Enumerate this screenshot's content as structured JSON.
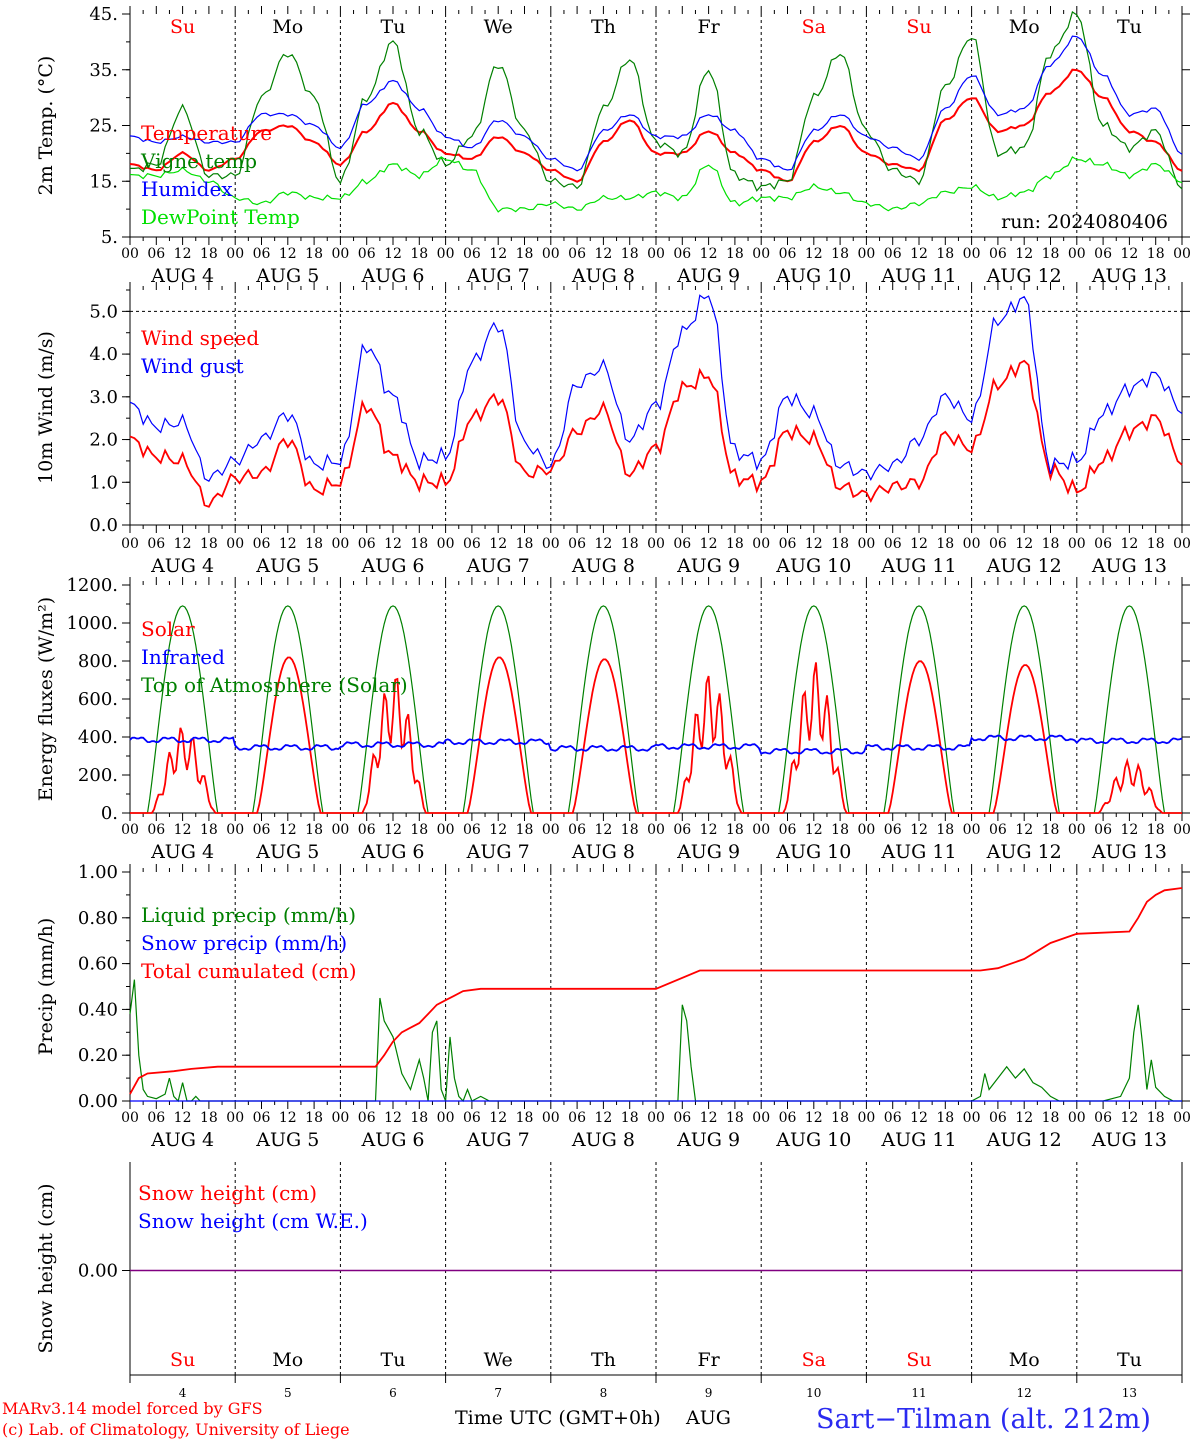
{
  "run_label": "run: 2024080406",
  "days": [
    "Su",
    "Mo",
    "Tu",
    "We",
    "Th",
    "Fr",
    "Sa",
    "Su",
    "Mo",
    "Tu"
  ],
  "weekend_flags": [
    true,
    false,
    false,
    false,
    false,
    false,
    true,
    true,
    false,
    false
  ],
  "date_labels": [
    "AUG  4",
    "AUG  5",
    "AUG  6",
    "AUG  7",
    "AUG  8",
    "AUG  9",
    "AUG 10",
    "AUG 11",
    "AUG 12",
    "AUG 13"
  ],
  "hour_labels": [
    "00",
    "06",
    "12",
    "18"
  ],
  "last_hour_label": "00",
  "bottom_day_numbers": [
    "4",
    "5",
    "6",
    "7",
    "8",
    "9",
    "10",
    "11",
    "12",
    "13"
  ],
  "footer": {
    "model_line": "MARv3.14 model forced by GFS",
    "lab_line": "(c) Lab. of Climatology, University of Liege",
    "axis_title": "Time UTC (GMT+0h)",
    "month": "AUG",
    "station": "Sart−Tilman (alt. 212m)"
  },
  "colors": {
    "red": "#ff0000",
    "green": "#008000",
    "blue": "#0000ff",
    "lime": "#00e000",
    "purple": "#800080",
    "axis": "#000000"
  },
  "chart_data": [
    {
      "type": "line",
      "ylabel": "2m Temp. (°C)",
      "ylim": [
        5,
        45
      ],
      "yticks": [
        5,
        15,
        25,
        35,
        45
      ],
      "ytick_labels": [
        "5.",
        "15.",
        "25.",
        "35.",
        "45."
      ],
      "x_unit": "hours since 2024-08-04 00 UTC",
      "series": [
        {
          "name": "Temperature",
          "color": "red",
          "x": [
            0,
            6,
            12,
            18,
            24,
            30,
            36,
            42,
            48,
            54,
            60,
            66,
            72,
            78,
            84,
            90,
            96,
            102,
            108,
            114,
            120,
            126,
            132,
            138,
            144,
            150,
            156,
            162,
            168,
            174,
            180,
            186,
            192,
            198,
            204,
            210,
            216,
            222,
            228,
            234,
            240
          ],
          "y": [
            18,
            17,
            20,
            17,
            19,
            24,
            25,
            22,
            18,
            24,
            29,
            24,
            20,
            19,
            23,
            20,
            17,
            15,
            22,
            26,
            20,
            20,
            24,
            20,
            17,
            15,
            22,
            25,
            20,
            18,
            17,
            26,
            30,
            24,
            25,
            31,
            35,
            30,
            24,
            22,
            17
          ]
        },
        {
          "name": "Vigne temp",
          "color": "green",
          "x": [
            0,
            6,
            12,
            18,
            24,
            30,
            36,
            42,
            48,
            54,
            60,
            66,
            72,
            78,
            84,
            90,
            96,
            102,
            108,
            114,
            120,
            126,
            132,
            138,
            144,
            150,
            156,
            162,
            168,
            174,
            180,
            186,
            192,
            198,
            204,
            210,
            216,
            222,
            228,
            234,
            240
          ],
          "y": [
            17,
            18,
            28,
            16,
            16,
            30,
            38,
            30,
            15,
            30,
            40,
            24,
            18,
            23,
            36,
            24,
            15,
            14,
            28,
            37,
            22,
            20,
            35,
            16,
            14,
            15,
            30,
            38,
            24,
            17,
            15,
            32,
            41,
            20,
            21,
            38,
            45,
            25,
            21,
            24,
            14
          ]
        },
        {
          "name": "Humidex",
          "color": "blue",
          "x": [
            0,
            6,
            12,
            18,
            24,
            30,
            36,
            42,
            48,
            54,
            60,
            66,
            72,
            78,
            84,
            90,
            96,
            102,
            108,
            114,
            120,
            126,
            132,
            138,
            144,
            150,
            156,
            162,
            168,
            174,
            180,
            186,
            192,
            198,
            204,
            210,
            216,
            222,
            228,
            234,
            240
          ],
          "y": [
            23,
            22,
            23,
            22,
            22,
            27,
            27,
            25,
            21,
            29,
            33,
            28,
            23,
            21,
            26,
            23,
            19,
            17,
            24,
            27,
            23,
            23,
            27,
            24,
            19,
            17,
            24,
            27,
            23,
            21,
            19,
            28,
            34,
            27,
            28,
            36,
            41,
            34,
            27,
            28,
            20
          ]
        },
        {
          "name": "DewPoint Temp",
          "color": "lime",
          "x": [
            0,
            6,
            12,
            18,
            24,
            30,
            36,
            42,
            48,
            54,
            60,
            66,
            72,
            78,
            84,
            90,
            96,
            102,
            108,
            114,
            120,
            126,
            132,
            138,
            144,
            150,
            156,
            162,
            168,
            174,
            180,
            186,
            192,
            198,
            204,
            210,
            216,
            222,
            228,
            234,
            240
          ],
          "y": [
            16,
            16,
            17,
            15,
            12,
            11,
            13,
            12,
            12,
            15,
            18,
            16,
            19,
            17,
            10,
            10,
            11,
            10,
            12,
            12,
            13,
            12,
            18,
            11,
            12,
            12,
            14,
            13,
            11,
            10,
            11,
            13,
            14,
            12,
            13,
            16,
            19,
            18,
            16,
            18,
            15
          ]
        }
      ],
      "legend": [
        "Temperature",
        "Vigne temp",
        "Humidex",
        "DewPoint Temp"
      ],
      "legend_placement": "left"
    },
    {
      "type": "line",
      "ylabel": "10m Wind (m/s)",
      "ylim": [
        0,
        5.5
      ],
      "yticks": [
        0,
        1,
        2,
        3,
        4,
        5
      ],
      "ytick_labels": [
        "0.0",
        "1.0",
        "2.0",
        "3.0",
        "4.0",
        "5.0"
      ],
      "ref_line": 5.0,
      "series": [
        {
          "name": "Wind speed",
          "color": "red",
          "x": [
            0,
            6,
            12,
            18,
            24,
            30,
            36,
            42,
            48,
            54,
            60,
            66,
            72,
            78,
            84,
            90,
            96,
            102,
            108,
            114,
            120,
            126,
            132,
            138,
            144,
            150,
            156,
            162,
            168,
            174,
            180,
            186,
            192,
            198,
            204,
            210,
            216,
            222,
            228,
            234,
            240
          ],
          "y": [
            2.0,
            1.6,
            1.5,
            0.5,
            1.1,
            1.2,
            2.0,
            0.8,
            1.0,
            2.8,
            1.6,
            1.0,
            1.0,
            2.5,
            3.0,
            1.2,
            1.3,
            2.2,
            2.7,
            1.2,
            1.8,
            3.2,
            3.5,
            1.1,
            1.0,
            2.2,
            2.0,
            0.9,
            0.7,
            0.9,
            1.0,
            2.1,
            1.8,
            3.3,
            3.8,
            1.3,
            0.8,
            1.5,
            2.2,
            2.5,
            1.5
          ]
        },
        {
          "name": "Wind gust",
          "color": "blue",
          "x": [
            0,
            6,
            12,
            18,
            24,
            30,
            36,
            42,
            48,
            54,
            60,
            66,
            72,
            78,
            84,
            90,
            96,
            102,
            108,
            114,
            120,
            126,
            132,
            138,
            144,
            150,
            156,
            162,
            168,
            174,
            180,
            186,
            192,
            198,
            204,
            210,
            216,
            222,
            228,
            234,
            240
          ],
          "y": [
            2.8,
            2.3,
            2.4,
            1.1,
            1.5,
            2.0,
            2.6,
            1.4,
            1.5,
            4.2,
            3.0,
            1.5,
            1.6,
            3.8,
            4.7,
            1.9,
            1.4,
            3.3,
            3.7,
            2.0,
            2.8,
            4.5,
            5.4,
            1.7,
            1.5,
            3.0,
            2.6,
            1.4,
            1.2,
            1.4,
            2.0,
            3.0,
            2.5,
            4.8,
            5.3,
            1.4,
            1.5,
            2.6,
            3.2,
            3.5,
            2.7
          ]
        }
      ],
      "legend": [
        "Wind speed",
        "Wind gust"
      ],
      "legend_placement": "left"
    },
    {
      "type": "line",
      "ylabel": "Energy fluxes (W/m²)",
      "ylim": [
        0,
        1200
      ],
      "yticks": [
        0,
        200,
        400,
        600,
        800,
        1000,
        1200
      ],
      "ytick_labels": [
        "0.",
        "200.",
        "400.",
        "600.",
        "800.",
        "1000.",
        "1200."
      ],
      "solar_peaks": [
        460,
        820,
        740,
        820,
        810,
        740,
        800,
        800,
        780,
        280
      ],
      "toa_peak": 1090,
      "infrared_base": [
        385,
        345,
        360,
        375,
        340,
        350,
        325,
        345,
        395,
        380
      ],
      "series": [
        {
          "name": "Solar",
          "color": "red"
        },
        {
          "name": "Infrared",
          "color": "blue"
        },
        {
          "name": "Top of Atmosphere (Solar)",
          "color": "green"
        }
      ],
      "legend": [
        "Solar",
        "Infrared",
        "Top of Atmosphere (Solar)"
      ],
      "legend_placement": "left"
    },
    {
      "type": "line",
      "ylabel": "Precip (mm/h)",
      "ylim": [
        0,
        1.0
      ],
      "yticks": [
        0,
        0.2,
        0.4,
        0.6,
        0.8,
        1.0
      ],
      "ytick_labels": [
        "0.00",
        "0.20",
        "0.40",
        "0.60",
        "0.80",
        "1.00"
      ],
      "series": [
        {
          "name": "Liquid precip (mm/h)",
          "color": "green",
          "x": [
            0,
            1,
            2,
            3,
            4,
            6,
            8,
            9,
            10,
            11,
            12,
            13,
            14,
            15,
            16,
            18,
            20,
            24,
            50,
            56,
            57,
            58,
            60,
            62,
            64,
            66,
            67,
            68,
            69,
            70,
            71,
            72,
            73,
            74,
            75,
            76,
            77,
            78,
            80,
            82,
            84,
            120,
            124,
            125,
            126,
            127,
            128,
            129,
            130,
            132,
            192,
            194,
            195,
            196,
            198,
            200,
            202,
            204,
            206,
            208,
            210,
            212,
            218,
            222,
            226,
            228,
            229,
            230,
            231,
            232,
            233,
            234,
            235,
            236,
            238,
            240
          ],
          "y": [
            0.38,
            0.53,
            0.2,
            0.05,
            0.02,
            0.01,
            0.03,
            0.1,
            0.02,
            0.0,
            0.08,
            0.0,
            0.0,
            0.02,
            0.0,
            0.0,
            0.0,
            0.0,
            0.0,
            0.0,
            0.45,
            0.35,
            0.28,
            0.12,
            0.05,
            0.18,
            0.1,
            0.0,
            0.3,
            0.35,
            0.05,
            0.0,
            0.28,
            0.1,
            0.02,
            0.0,
            0.05,
            0.0,
            0.02,
            0.0,
            0.0,
            0.0,
            0.0,
            0.0,
            0.42,
            0.35,
            0.15,
            0.0,
            0.0,
            0.0,
            0.0,
            0.02,
            0.12,
            0.05,
            0.1,
            0.15,
            0.1,
            0.14,
            0.08,
            0.06,
            0.02,
            0.0,
            0.0,
            0.0,
            0.02,
            0.1,
            0.3,
            0.42,
            0.25,
            0.05,
            0.18,
            0.06,
            0.04,
            0.02,
            0.0,
            0.0
          ]
        },
        {
          "name": "Snow precip (mm/h)",
          "color": "blue",
          "x": [
            0,
            240
          ],
          "y": [
            0,
            0
          ]
        },
        {
          "name": "Total cumulated (cm)",
          "color": "red",
          "x": [
            0,
            2,
            4,
            10,
            14,
            20,
            30,
            56,
            58,
            60,
            62,
            64,
            66,
            68,
            70,
            72,
            74,
            76,
            80,
            84,
            90,
            100,
            120,
            130,
            140,
            150,
            180,
            194,
            198,
            204,
            210,
            216,
            228,
            230,
            232,
            234,
            236,
            240
          ],
          "y": [
            0.03,
            0.1,
            0.12,
            0.13,
            0.14,
            0.15,
            0.15,
            0.15,
            0.2,
            0.26,
            0.3,
            0.32,
            0.34,
            0.38,
            0.42,
            0.44,
            0.46,
            0.48,
            0.49,
            0.49,
            0.49,
            0.49,
            0.49,
            0.57,
            0.57,
            0.57,
            0.57,
            0.57,
            0.58,
            0.62,
            0.69,
            0.73,
            0.74,
            0.8,
            0.87,
            0.9,
            0.92,
            0.93
          ]
        }
      ],
      "legend": [
        "Liquid precip (mm/h)",
        "Snow precip (mm/h)",
        "Total cumulated (cm)"
      ],
      "legend_placement": "left"
    },
    {
      "type": "line",
      "ylabel": "Snow height (cm)",
      "ytick_labels": [
        "0.00"
      ],
      "series": [
        {
          "name": "Snow height (cm)",
          "color": "red",
          "x": [
            0,
            240
          ],
          "y": [
            0,
            0
          ]
        },
        {
          "name": "Snow height (cm W.E.)",
          "color": "blue",
          "x": [
            0,
            240
          ],
          "y": [
            0,
            0
          ]
        }
      ],
      "legend": [
        "Snow height (cm)",
        "Snow height (cm W.E.)"
      ],
      "legend_placement": "left"
    }
  ]
}
